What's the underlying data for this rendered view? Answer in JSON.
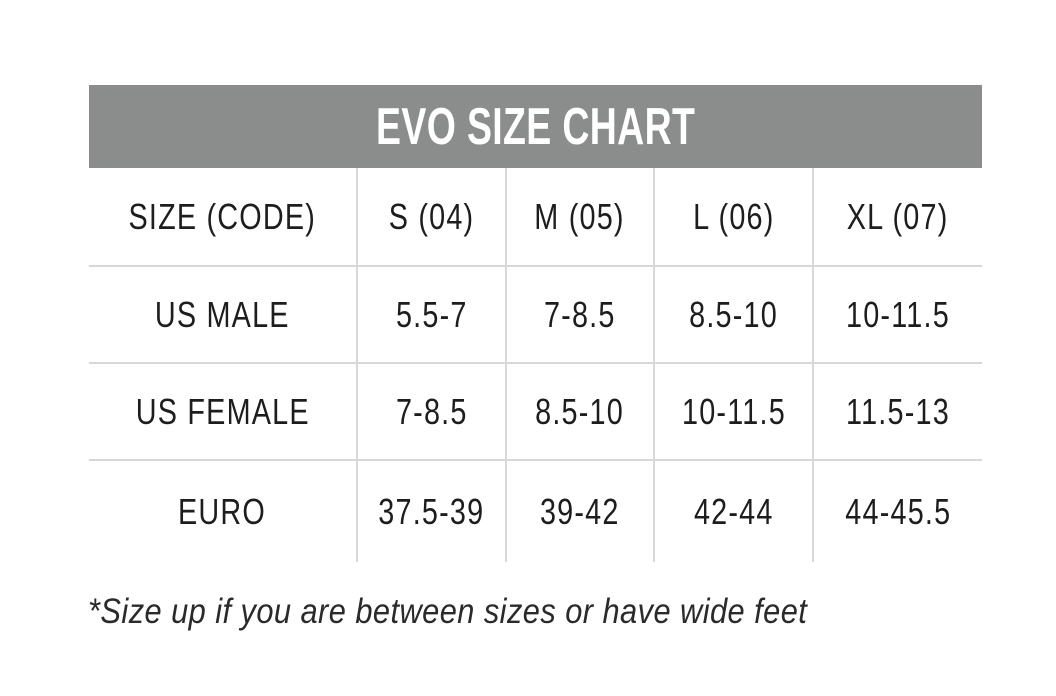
{
  "title": "EVO SIZE CHART",
  "size_chart": {
    "columns": [
      "SIZE (CODE)",
      "S (04)",
      "M (05)",
      "L (06)",
      "XL (07)"
    ],
    "rows": [
      {
        "label": "US MALE",
        "values": [
          "5.5-7",
          "7-8.5",
          "8.5-10",
          "10-11.5"
        ]
      },
      {
        "label": "US FEMALE",
        "values": [
          "7-8.5",
          "8.5-10",
          "10-11.5",
          "11.5-13"
        ]
      },
      {
        "label": "EURO",
        "values": [
          "37.5-39",
          "39-42",
          "42-44",
          "44-45.5"
        ]
      }
    ]
  },
  "footnote": "*Size up if you are between sizes or have wide feet",
  "chart_data": {
    "type": "table",
    "title": "EVO SIZE CHART",
    "columns": [
      "SIZE (CODE)",
      "S (04)",
      "M (05)",
      "L (06)",
      "XL (07)"
    ],
    "rows": [
      [
        "US MALE",
        "5.5-7",
        "7-8.5",
        "8.5-10",
        "10-11.5"
      ],
      [
        "US FEMALE",
        "7-8.5",
        "8.5-10",
        "10-11.5",
        "11.5-13"
      ],
      [
        "EURO",
        "37.5-39",
        "39-42",
        "42-44",
        "44-45.5"
      ]
    ],
    "footnote": "*Size up if you are between sizes or have wide feet"
  },
  "colors": {
    "banner_background": "#8b8c8c",
    "banner_text": "#ffffff",
    "table_text": "#1d1d1d",
    "divider": "#d8d8d8",
    "page_background": "#ffffff"
  }
}
